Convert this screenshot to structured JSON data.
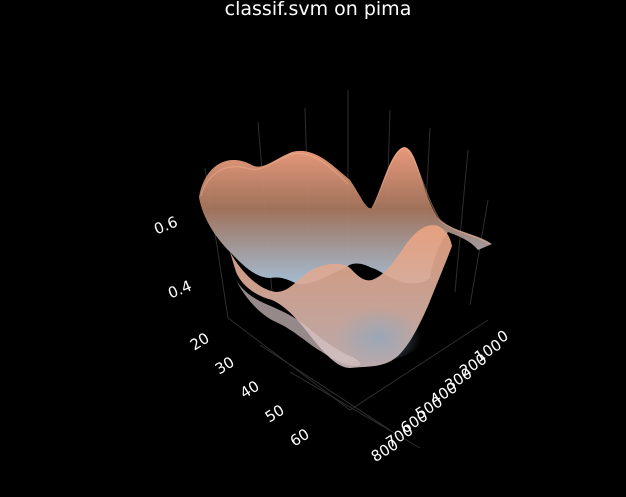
{
  "chart_data": {
    "type": "surface3d",
    "title": "classif.svm on pima",
    "z_ticks": [
      "0.4",
      "0.6"
    ],
    "y_ticks": [
      "20",
      "30",
      "40",
      "50",
      "60"
    ],
    "x_ticks": [
      "0",
      "100",
      "200",
      "300",
      "400",
      "500",
      "600",
      "700",
      "800"
    ],
    "x_range": [
      0,
      850
    ],
    "y_range": [
      20,
      65
    ],
    "z_range": [
      0.33,
      0.7
    ],
    "colorscale": [
      "#a9c4dc",
      "#f2a080"
    ],
    "grid": true,
    "background": "#000000"
  }
}
